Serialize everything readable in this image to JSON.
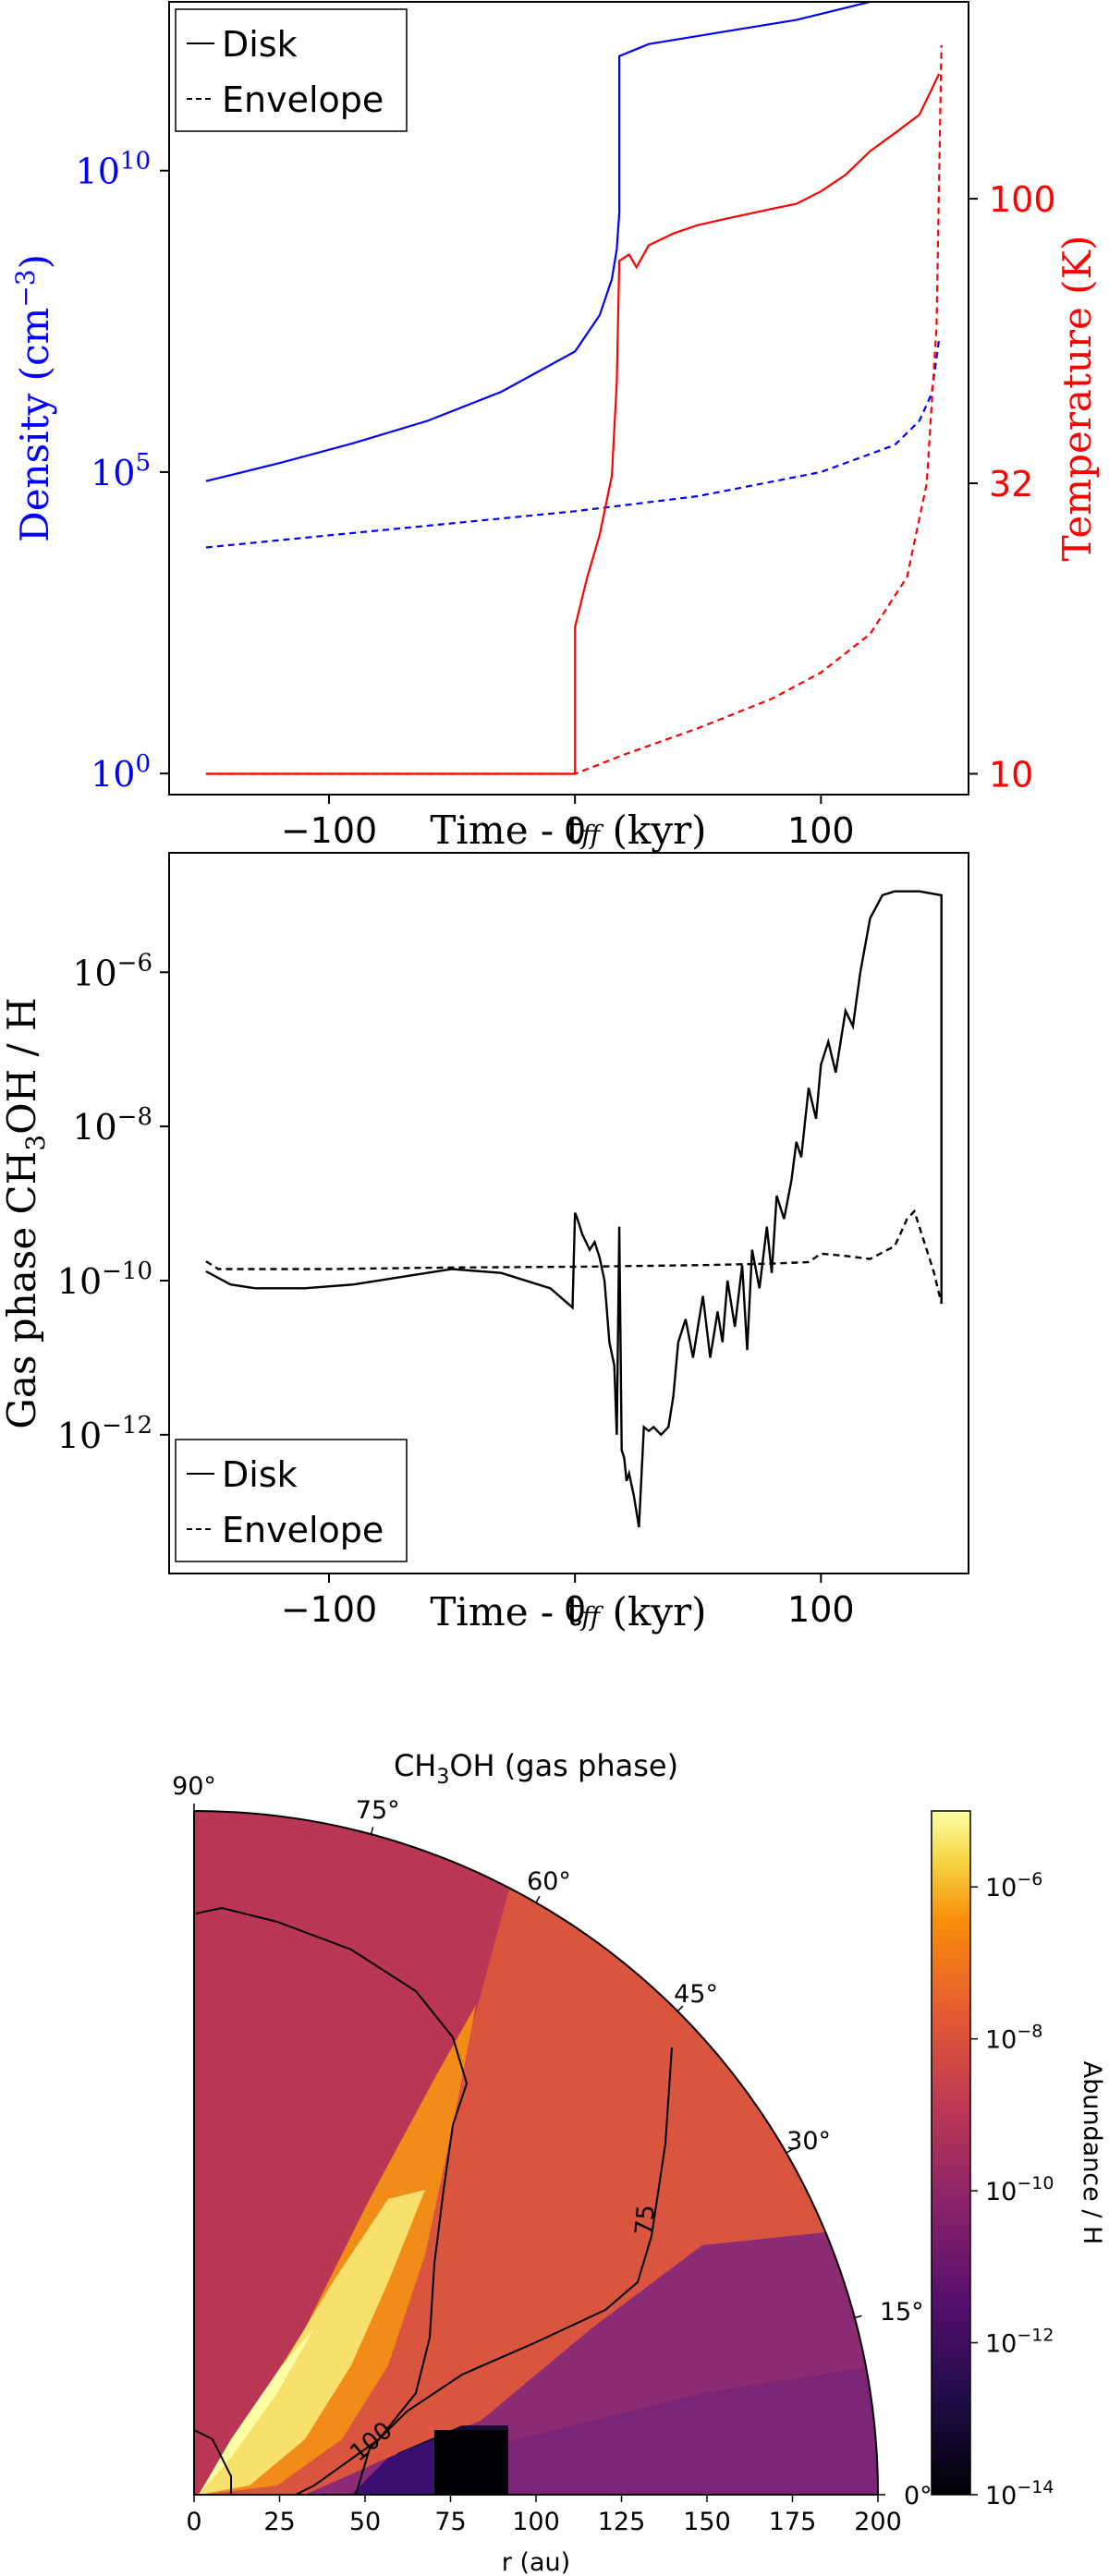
{
  "chart_data": [
    {
      "type": "line",
      "xlabel": "Time - t",
      "xlabel_sub": "ff",
      "xlabel_unit": " (kyr)",
      "xlim": [
        -165,
        160
      ],
      "x_ticks": [
        -100,
        0,
        100
      ],
      "x_tick_labels": [
        "−100",
        "0",
        "100"
      ],
      "ylabel_left": "Density (cm",
      "ylabel_left_sup": "−3",
      "ylabel_left_close": ")",
      "ylabel_left_color": "#0000ff",
      "y_left_scale": "log",
      "y_left_lim_log10": [
        -0.35,
        12.8
      ],
      "y_left_ticks_log10": [
        0,
        5,
        10
      ],
      "y_left_tick_base": "10",
      "y_left_tick_exps": [
        "0",
        "5",
        "10"
      ],
      "ylabel_right": "Temperature (K)",
      "ylabel_right_color": "#ff0000",
      "y_right_scale": "log",
      "y_right_lim": [
        9.2,
        220
      ],
      "y_right_ticks": [
        10,
        32,
        100
      ],
      "y_right_tick_labels": [
        "10",
        "32",
        "100"
      ],
      "legend": [
        "Disk",
        "Envelope"
      ],
      "legend_position": "top-left",
      "series": [
        {
          "name": "Disk",
          "quantity": "density",
          "color": "#0000ff",
          "style": "solid",
          "x": [
            -150,
            -120,
            -90,
            -60,
            -30,
            0,
            10,
            15,
            17,
            18,
            18,
            18,
            30,
            60,
            90,
            120,
            148
          ],
          "log10_y": [
            4.85,
            5.15,
            5.48,
            5.85,
            6.33,
            7.0,
            7.6,
            8.2,
            8.7,
            9.3,
            10.5,
            11.9,
            12.1,
            12.3,
            12.5,
            12.8,
            13.3
          ]
        },
        {
          "name": "Envelope",
          "quantity": "density",
          "color": "#0000ff",
          "style": "dashed",
          "x": [
            -150,
            -100,
            -50,
            0,
            50,
            100,
            130,
            140,
            145,
            148
          ],
          "log10_y": [
            3.75,
            3.95,
            4.15,
            4.35,
            4.6,
            5.0,
            5.45,
            5.85,
            6.3,
            7.2
          ]
        },
        {
          "name": "Disk",
          "quantity": "temperature",
          "color": "#ff0000",
          "style": "solid",
          "x": [
            -150,
            0,
            0,
            5,
            10,
            15,
            17,
            18,
            22,
            25,
            30,
            40,
            50,
            60,
            70,
            80,
            90,
            100,
            110,
            120,
            130,
            140,
            145,
            148
          ],
          "y": [
            10,
            10,
            18,
            22,
            26,
            33,
            48,
            78,
            80,
            76,
            83,
            87,
            90,
            92,
            94,
            96,
            98,
            103,
            110,
            121,
            130,
            140,
            155,
            165
          ]
        },
        {
          "name": "Envelope",
          "quantity": "temperature",
          "color": "#ff0000",
          "style": "dashed",
          "x": [
            -150,
            0,
            20,
            50,
            80,
            100,
            120,
            135,
            143,
            147,
            149
          ],
          "y": [
            10,
            10,
            10.8,
            12,
            13.5,
            15,
            17.5,
            22,
            32,
            60,
            185
          ]
        }
      ]
    },
    {
      "type": "line",
      "xlabel": "Time - t",
      "xlabel_sub": "ff",
      "xlabel_unit": " (kyr)",
      "xlim": [
        -165,
        160
      ],
      "x_ticks": [
        -100,
        0,
        100
      ],
      "x_tick_labels": [
        "−100",
        "0",
        "100"
      ],
      "ylabel_prefix": "Gas phase CH",
      "ylabel_sub": "3",
      "ylabel_suffix": "OH / H",
      "y_scale": "log",
      "ylim_log10": [
        -13.8,
        -4.45
      ],
      "y_ticks_log10": [
        -12,
        -10,
        -8,
        -6
      ],
      "y_tick_base": "10",
      "y_tick_exps": [
        "−12",
        "−10",
        "−8",
        "−6"
      ],
      "legend": [
        "Disk",
        "Envelope"
      ],
      "legend_position": "lower-left",
      "series": [
        {
          "name": "Disk",
          "color": "#000000",
          "style": "solid",
          "x": [
            -150,
            -140,
            -130,
            -110,
            -90,
            -70,
            -50,
            -30,
            -10,
            -1,
            0,
            1,
            3,
            6,
            8,
            10,
            12,
            14,
            16,
            17,
            18,
            19,
            20,
            21,
            22,
            24,
            26,
            28,
            30,
            32,
            35,
            38,
            40,
            42,
            45,
            48,
            50,
            52,
            55,
            58,
            60,
            62,
            65,
            68,
            70,
            72,
            75,
            78,
            80,
            82,
            85,
            88,
            90,
            92,
            95,
            98,
            100,
            103,
            106,
            110,
            113,
            116,
            120,
            125,
            130,
            140,
            149,
            149
          ],
          "log10_y": [
            -9.88,
            -10.05,
            -10.1,
            -10.1,
            -10.05,
            -9.95,
            -9.85,
            -9.9,
            -10.1,
            -10.35,
            -9.12,
            -9.2,
            -9.4,
            -9.6,
            -9.5,
            -9.7,
            -10.0,
            -10.8,
            -11.1,
            -12.0,
            -9.3,
            -12.2,
            -12.3,
            -12.6,
            -12.5,
            -12.8,
            -13.2,
            -11.9,
            -11.95,
            -11.9,
            -12.0,
            -11.9,
            -11.5,
            -10.8,
            -10.5,
            -11.0,
            -10.6,
            -10.2,
            -11.0,
            -10.4,
            -10.8,
            -10.0,
            -10.6,
            -9.8,
            -10.9,
            -9.6,
            -10.1,
            -9.3,
            -9.9,
            -8.9,
            -9.2,
            -8.7,
            -8.2,
            -8.4,
            -7.5,
            -7.9,
            -7.2,
            -6.9,
            -7.3,
            -6.5,
            -6.7,
            -6.0,
            -5.3,
            -5.0,
            -4.95,
            -4.95,
            -5.0,
            -10.3
          ]
        },
        {
          "name": "Envelope",
          "color": "#000000",
          "style": "dashed",
          "x": [
            -150,
            -145,
            -130,
            -100,
            -50,
            0,
            50,
            80,
            95,
            100,
            110,
            120,
            130,
            135,
            138,
            142,
            146,
            149
          ],
          "log10_y": [
            -9.75,
            -9.85,
            -9.85,
            -9.85,
            -9.83,
            -9.82,
            -9.8,
            -9.78,
            -9.76,
            -9.65,
            -9.68,
            -9.72,
            -9.55,
            -9.2,
            -9.1,
            -9.5,
            -9.9,
            -10.3
          ]
        }
      ]
    },
    {
      "type": "heatmap",
      "projection": "polar-quadrant",
      "title_prefix": "CH",
      "title_sub": "3",
      "title_suffix": "OH (gas phase)",
      "xlabel": "r (au)",
      "r_lim": [
        0,
        200
      ],
      "r_ticks": [
        0,
        25,
        50,
        75,
        100,
        125,
        150,
        175,
        200
      ],
      "theta_ticks_deg": [
        0,
        15,
        30,
        45,
        60,
        75,
        90
      ],
      "theta_tick_labels": [
        "0°",
        "15°",
        "30°",
        "45°",
        "60°",
        "75°",
        "90°"
      ],
      "colorbar_label": "Abundance / H",
      "colorbar_scale": "log",
      "colorbar_lim_log10": [
        -14,
        -5
      ],
      "colorbar_ticks_log10": [
        -14,
        -12,
        -10,
        -8,
        -6
      ],
      "colorbar_tick_base": "10",
      "colorbar_tick_exps": [
        "−14",
        "−12",
        "−10",
        "−8",
        "−6"
      ],
      "colormap": "inferno",
      "contours": [
        {
          "label": "100",
          "quantity": "temperature (K)"
        },
        {
          "label": "75",
          "quantity": "temperature (K)"
        }
      ]
    }
  ]
}
